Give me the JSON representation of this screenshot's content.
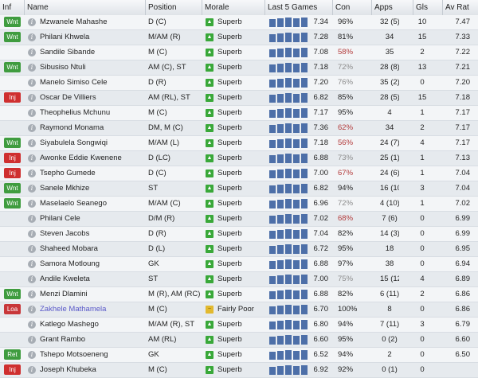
{
  "headers": {
    "inf": "Inf",
    "name": "Name",
    "position": "Position",
    "morale": "Morale",
    "last5": "Last 5 Games",
    "con": "Con",
    "apps": "Apps",
    "gls": "Gls",
    "avrat": "Av Rat"
  },
  "players": [
    {
      "inf": "Wnt",
      "name": "Mzwanele Mahashe",
      "position": "D (C)",
      "morale": "Superb",
      "last5": "7.34",
      "con": "96%",
      "apps": "32 (5)",
      "gls": "10",
      "avrat": "7.47"
    },
    {
      "inf": "Wnt",
      "name": "Philani Khwela",
      "position": "M/AM (R)",
      "morale": "Superb",
      "last5": "7.28",
      "con": "81%",
      "apps": "34",
      "gls": "15",
      "avrat": "7.33"
    },
    {
      "inf": "",
      "name": "Sandile Sibande",
      "position": "M (C)",
      "morale": "Superb",
      "last5": "7.08",
      "con": "58%",
      "apps": "35",
      "gls": "2",
      "avrat": "7.22"
    },
    {
      "inf": "Wnt",
      "name": "Sibusiso Ntuli",
      "position": "AM (C), ST",
      "morale": "Superb",
      "last5": "7.18",
      "con": "72%",
      "apps": "28 (8)",
      "gls": "13",
      "avrat": "7.21"
    },
    {
      "inf": "",
      "name": "Manelo Simiso Cele",
      "position": "D (R)",
      "morale": "Superb",
      "last5": "7.20",
      "con": "76%",
      "apps": "35 (2)",
      "gls": "0",
      "avrat": "7.20"
    },
    {
      "inf": "Inj",
      "name": "Oscar De Villiers",
      "position": "AM (RL), ST",
      "morale": "Superb",
      "last5": "6.82",
      "con": "85%",
      "apps": "28 (5)",
      "gls": "15",
      "avrat": "7.18"
    },
    {
      "inf": "",
      "name": "Theophelius Mchunu",
      "position": "M (C)",
      "morale": "Superb",
      "last5": "7.17",
      "con": "95%",
      "apps": "4",
      "gls": "1",
      "avrat": "7.17"
    },
    {
      "inf": "",
      "name": "Raymond Monama",
      "position": "DM, M (C)",
      "morale": "Superb",
      "last5": "7.36",
      "con": "62%",
      "apps": "34",
      "gls": "2",
      "avrat": "7.17"
    },
    {
      "inf": "Wnt",
      "name": "Siyabulela Songwiqi",
      "position": "M/AM (L)",
      "morale": "Superb",
      "last5": "7.18",
      "con": "56%",
      "apps": "24 (7)",
      "gls": "4",
      "avrat": "7.17"
    },
    {
      "inf": "Inj",
      "name": "Awonke Eddie Kwenene",
      "position": "D (LC)",
      "morale": "Superb",
      "last5": "6.88",
      "con": "73%",
      "apps": "25 (1)",
      "gls": "1",
      "avrat": "7.13"
    },
    {
      "inf": "Inj",
      "name": "Tsepho Gumede",
      "position": "D (C)",
      "morale": "Superb",
      "last5": "7.00",
      "con": "67%",
      "apps": "24 (6)",
      "gls": "1",
      "avrat": "7.04"
    },
    {
      "inf": "Wnt",
      "name": "Sanele Mkhize",
      "position": "ST",
      "morale": "Superb",
      "last5": "6.82",
      "con": "94%",
      "apps": "16 (10)",
      "gls": "3",
      "avrat": "7.04"
    },
    {
      "inf": "Wnt",
      "name": "Maselaelo Seanego",
      "position": "M/AM (C)",
      "morale": "Superb",
      "last5": "6.96",
      "con": "72%",
      "apps": "4 (10)",
      "gls": "1",
      "avrat": "7.02"
    },
    {
      "inf": "",
      "name": "Philani Cele",
      "position": "D/M (R)",
      "morale": "Superb",
      "last5": "7.02",
      "con": "68%",
      "apps": "7 (6)",
      "gls": "0",
      "avrat": "6.99"
    },
    {
      "inf": "",
      "name": "Steven Jacobs",
      "position": "D (R)",
      "morale": "Superb",
      "last5": "7.04",
      "con": "82%",
      "apps": "14 (3)",
      "gls": "0",
      "avrat": "6.99"
    },
    {
      "inf": "",
      "name": "Shaheed Mobara",
      "position": "D (L)",
      "morale": "Superb",
      "last5": "6.72",
      "con": "95%",
      "apps": "18",
      "gls": "0",
      "avrat": "6.95"
    },
    {
      "inf": "",
      "name": "Samora Motloung",
      "position": "GK",
      "morale": "Superb",
      "last5": "6.88",
      "con": "97%",
      "apps": "38",
      "gls": "0",
      "avrat": "6.94"
    },
    {
      "inf": "",
      "name": "Andile Kweleta",
      "position": "ST",
      "morale": "Superb",
      "last5": "7.00",
      "con": "75%",
      "apps": "15 (12)",
      "gls": "4",
      "avrat": "6.89"
    },
    {
      "inf": "Wnt",
      "name": "Menzi Dlamini",
      "position": "M (R), AM (RC)",
      "morale": "Superb",
      "last5": "6.88",
      "con": "82%",
      "apps": "6 (11)",
      "gls": "2",
      "avrat": "6.86"
    },
    {
      "inf": "Loa",
      "name": "Zakhele Mathamela",
      "position": "M (C)",
      "morale": "Fairly Poor",
      "last5": "6.70",
      "con": "100%",
      "apps": "8",
      "gls": "0",
      "avrat": "6.86",
      "loan": true
    },
    {
      "inf": "",
      "name": "Katlego Mashego",
      "position": "M/AM (R), ST",
      "morale": "Superb",
      "last5": "6.80",
      "con": "94%",
      "apps": "7 (11)",
      "gls": "3",
      "avrat": "6.79"
    },
    {
      "inf": "",
      "name": "Grant Rambo",
      "position": "AM (RL)",
      "morale": "Superb",
      "last5": "6.60",
      "con": "95%",
      "apps": "0 (2)",
      "gls": "0",
      "avrat": "6.60"
    },
    {
      "inf": "Ret",
      "name": "Tshepo Motsoeneng",
      "position": "GK",
      "morale": "Superb",
      "last5": "6.52",
      "con": "94%",
      "apps": "2",
      "gls": "0",
      "avrat": "6.50"
    },
    {
      "inf": "Inj",
      "name": "Joseph Khubeka",
      "position": "M (C)",
      "morale": "Superb",
      "last5": "6.92",
      "con": "92%",
      "apps": "0 (1)",
      "gls": "0",
      "avrat": ""
    }
  ],
  "colors": {
    "bar": "#4d6fa8",
    "low_con": "#b33b3b"
  }
}
